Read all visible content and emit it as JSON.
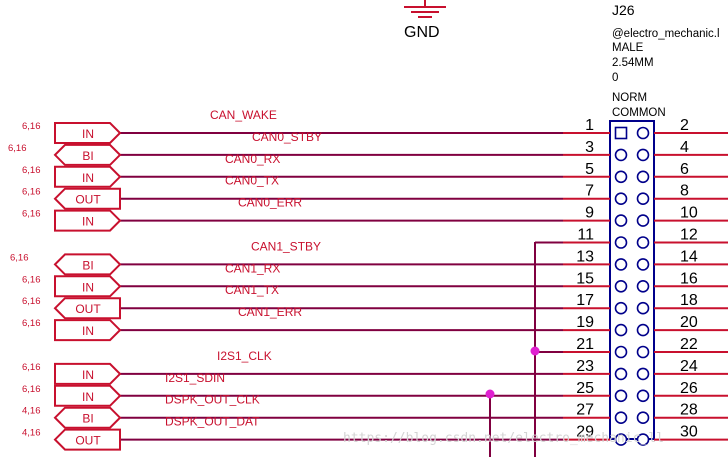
{
  "gnd": {
    "label": "GND"
  },
  "connector": {
    "refdes": "J26",
    "attrs": [
      "@electro_mechanic.l",
      "MALE",
      "2.54MM",
      "0",
      "NORM",
      "COMMON"
    ]
  },
  "left_pins": [
    "1",
    "3",
    "5",
    "7",
    "9",
    "11",
    "13",
    "15",
    "17",
    "19",
    "21",
    "23",
    "25",
    "27",
    "29"
  ],
  "right_pins": [
    "2",
    "4",
    "6",
    "8",
    "10",
    "12",
    "14",
    "16",
    "18",
    "20",
    "22",
    "24",
    "26",
    "28",
    "30"
  ],
  "ports": [
    {
      "ref": "6,16",
      "dir": "IN",
      "net": "CAN_WAKE"
    },
    {
      "ref": "6,16",
      "dir": "BI",
      "net": "CAN0_STBY"
    },
    {
      "ref": "6,16",
      "dir": "IN",
      "net": "CAN0_RX"
    },
    {
      "ref": "6,16",
      "dir": "OUT",
      "net": "CAN0_TX"
    },
    {
      "ref": "6,16",
      "dir": "IN",
      "net": "CAN0_ERR"
    },
    {
      "ref": "",
      "dir": "",
      "net": ""
    },
    {
      "ref": "6,16",
      "dir": "BI",
      "net": "CAN1_STBY"
    },
    {
      "ref": "6,16",
      "dir": "IN",
      "net": "CAN1_RX"
    },
    {
      "ref": "6,16",
      "dir": "OUT",
      "net": "CAN1_TX"
    },
    {
      "ref": "6,16",
      "dir": "IN",
      "net": "CAN1_ERR"
    },
    {
      "ref": "",
      "dir": "",
      "net": ""
    },
    {
      "ref": "6,16",
      "dir": "IN",
      "net": "I2S1_CLK"
    },
    {
      "ref": "6,16",
      "dir": "IN",
      "net": "I2S1_SDIN"
    },
    {
      "ref": "4,16",
      "dir": "BI",
      "net": "DSPK_OUT_CLK"
    },
    {
      "ref": "4,16",
      "dir": "OUT",
      "net": "DSPK_OUT_DAT"
    }
  ],
  "watermark": "https://blog.csdn.net/electro_mechanic_ll"
}
